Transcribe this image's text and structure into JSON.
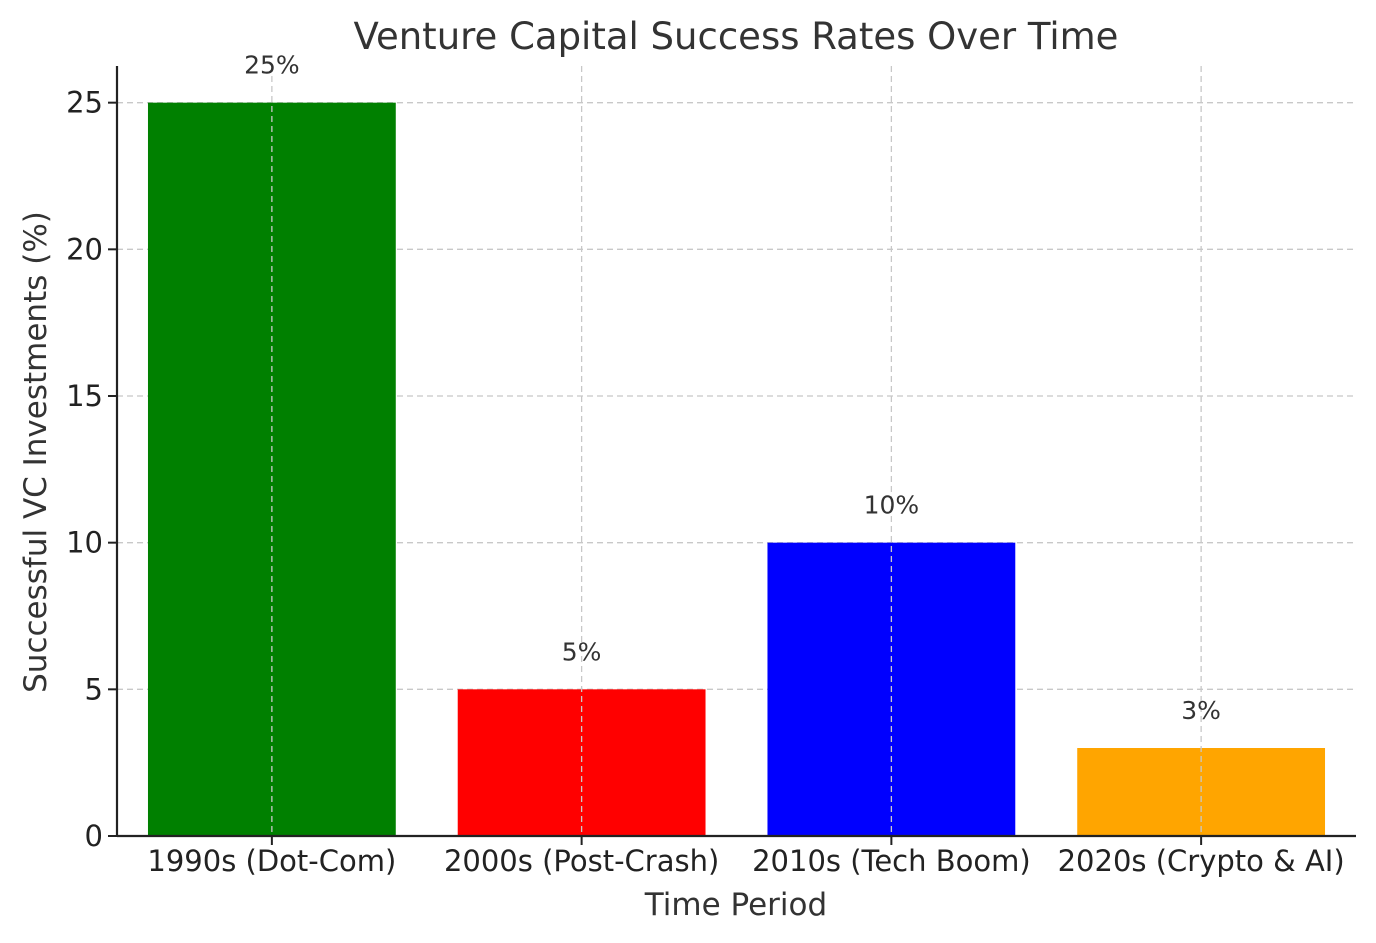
{
  "chart_data": {
    "type": "bar",
    "title": "Venture Capital Success Rates Over Time",
    "xlabel": "Time Period",
    "ylabel": "Successful VC Investments (%)",
    "categories": [
      "1990s (Dot-Com)",
      "2000s (Post-Crash)",
      "2010s (Tech Boom)",
      "2020s (Crypto & AI)"
    ],
    "values": [
      25,
      5,
      10,
      3
    ],
    "value_labels": [
      "25%",
      "5%",
      "10%",
      "3%"
    ],
    "colors": [
      "#008000",
      "#ff0000",
      "#0000ff",
      "#ffa500"
    ],
    "ylim": [
      0,
      26.25
    ],
    "yticks": [
      0,
      5,
      10,
      15,
      20,
      25
    ],
    "grid": true
  }
}
